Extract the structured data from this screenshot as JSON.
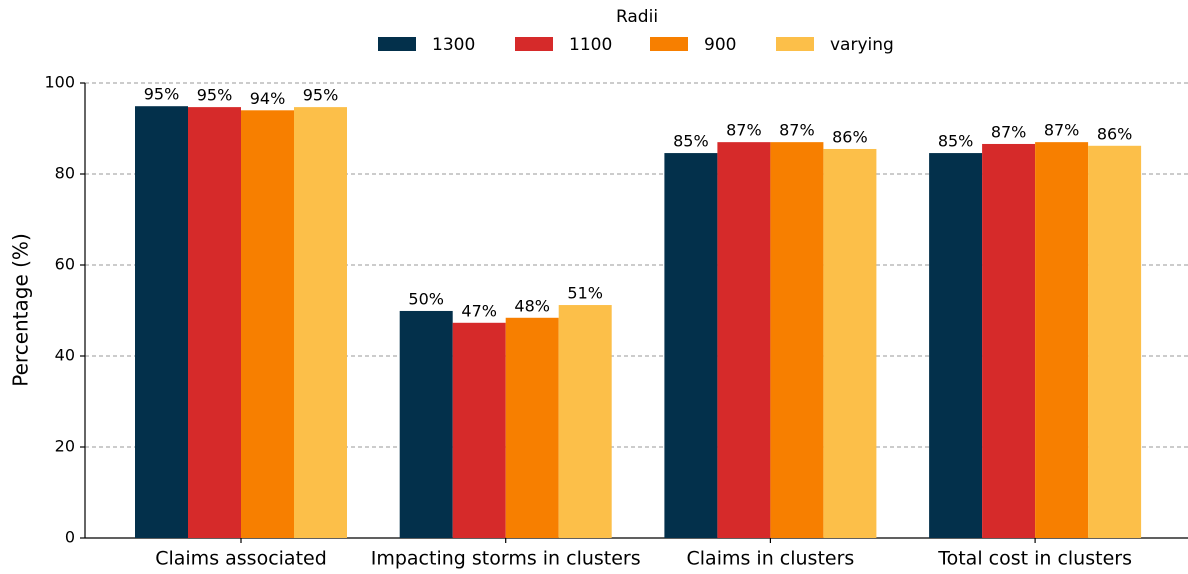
{
  "chart_data": {
    "type": "bar",
    "legend_title": "Radii",
    "ylabel": "Percentage (%)",
    "categories": [
      "Claims associated",
      "Impacting storms in clusters",
      "Claims in clusters",
      "Total cost in clusters"
    ],
    "series": [
      {
        "name": "1300",
        "color": "#03304b",
        "values": [
          94.9,
          49.9,
          84.6,
          84.6
        ],
        "value_labels": [
          "95%",
          "50%",
          "85%",
          "85%"
        ]
      },
      {
        "name": "1100",
        "color": "#d62a2a",
        "values": [
          94.7,
          47.3,
          87.0,
          86.6
        ],
        "value_labels": [
          "95%",
          "47%",
          "87%",
          "87%"
        ]
      },
      {
        "name": "900",
        "color": "#f77f00",
        "values": [
          94.0,
          48.4,
          87.0,
          87.0
        ],
        "value_labels": [
          "94%",
          "48%",
          "87%",
          "87%"
        ]
      },
      {
        "name": "varying",
        "color": "#fcbf49",
        "values": [
          94.7,
          51.2,
          85.5,
          86.2
        ],
        "value_labels": [
          "95%",
          "51%",
          "86%",
          "86%"
        ]
      }
    ],
    "ylim": [
      0,
      100
    ],
    "yticks": [
      0,
      20,
      40,
      60,
      80,
      100
    ],
    "grid": true,
    "legend": "top"
  }
}
